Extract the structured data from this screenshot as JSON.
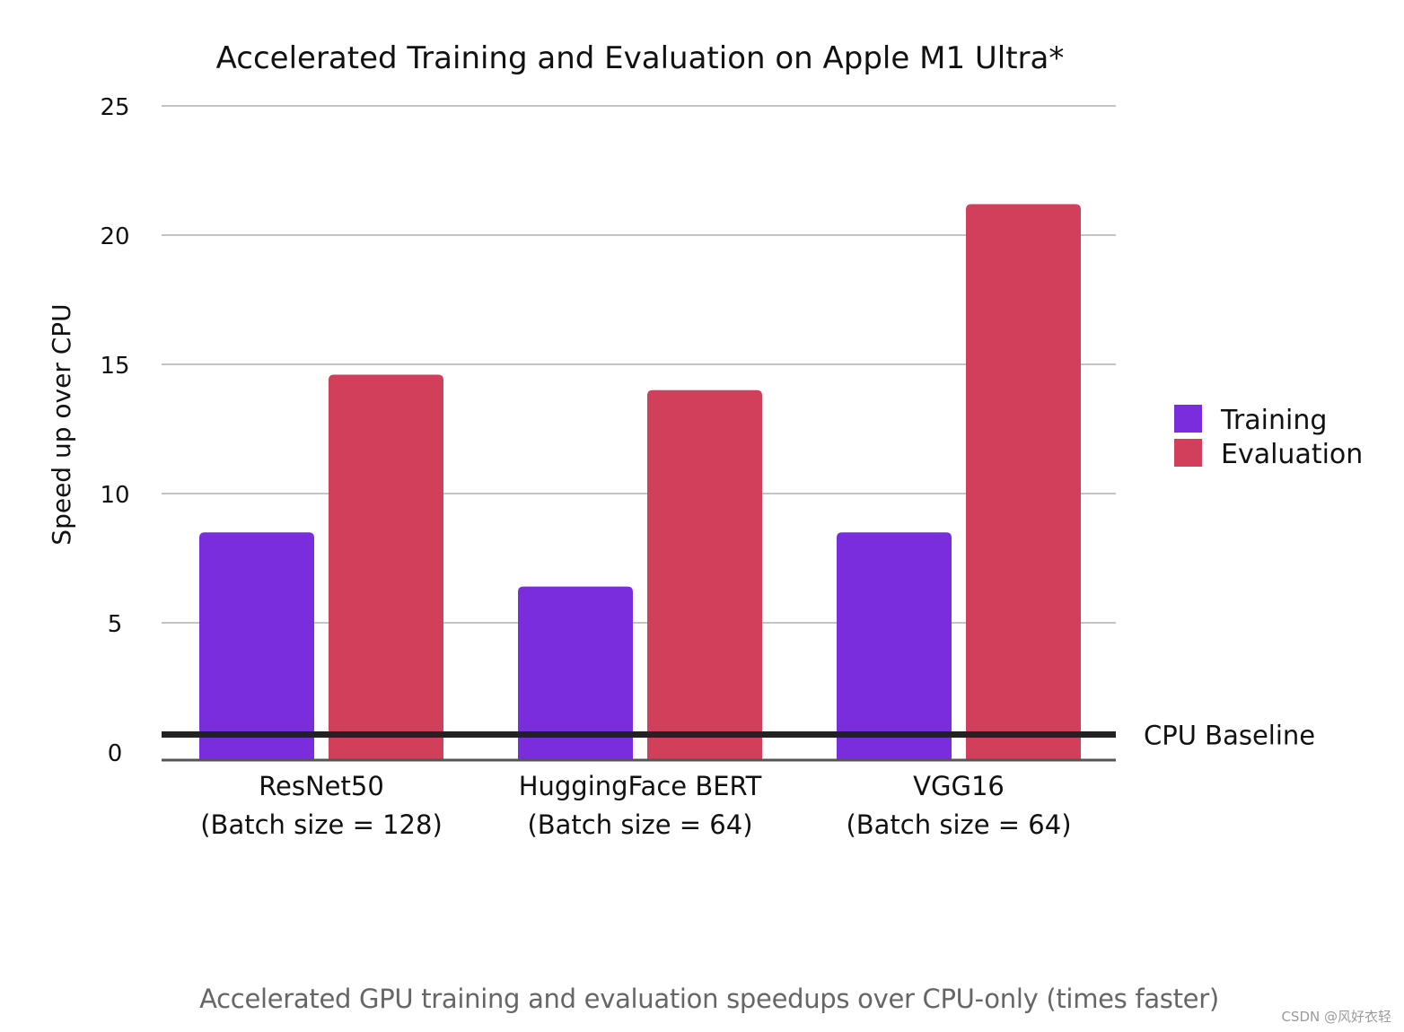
{
  "chart_data": {
    "type": "bar",
    "title": "Accelerated Training and Evaluation on Apple M1 Ultra*",
    "xlabel": "",
    "ylabel": "Speed up over CPU",
    "ylim": [
      0,
      25
    ],
    "yticks": [
      0,
      5,
      10,
      15,
      20,
      25
    ],
    "grid": true,
    "legend_position": "right",
    "categories": [
      [
        "ResNet50",
        "(Batch size = 128)"
      ],
      [
        "HuggingFace BERT",
        "(Batch size = 64)"
      ],
      [
        "VGG16",
        "(Batch size = 64)"
      ]
    ],
    "series": [
      {
        "name": "Training",
        "color": "#7a2ddc",
        "values": [
          8.5,
          6.4,
          8.5
        ]
      },
      {
        "name": "Evaluation",
        "color": "#d23f5b",
        "values": [
          14.6,
          14.0,
          21.2
        ]
      }
    ],
    "baseline": {
      "label": "CPU Baseline",
      "value": 1.2
    }
  },
  "caption": "Accelerated GPU training and evaluation speedups over CPU-only (times faster)",
  "watermark": "CSDN @风好衣轻"
}
